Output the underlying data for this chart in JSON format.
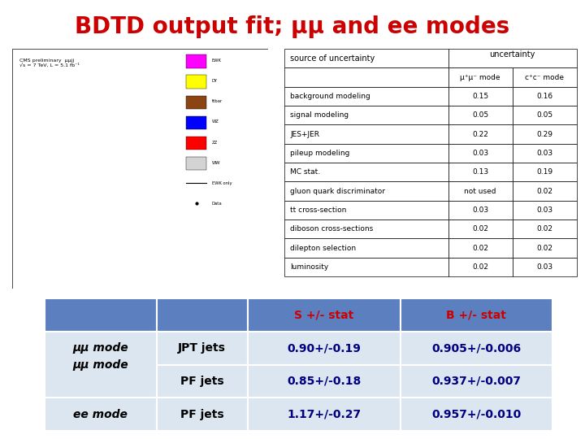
{
  "title": "BDTD output fit; μμ and ee modes",
  "title_color": "#cc0000",
  "title_fontsize": 20,
  "background_color": "#ffffff",
  "table_header_bg": "#5b7fbf",
  "table_row_bg": "#dce6f1",
  "table_border_color": "#ffffff",
  "col_headers": [
    "",
    "",
    "S +/- stat",
    "B +/- stat"
  ],
  "col_header_colors": [
    "#5b7fbf",
    "#5b7fbf",
    "#cc0000",
    "#cc0000"
  ],
  "rows": [
    {
      "mode_label": "μμ mode",
      "jet_type": "JPT jets",
      "s_stat": "0.90+/-0.19",
      "b_stat": "0.905+/-0.006"
    },
    {
      "mode_label": "",
      "jet_type": "PF jets",
      "s_stat": "0.85+/-0.18",
      "b_stat": "0.937+/-0.007"
    },
    {
      "mode_label": "ee mode",
      "jet_type": "PF jets",
      "s_stat": "1.17+/-0.27",
      "b_stat": "0.957+/-0.010"
    }
  ],
  "uncertainty_header": [
    "source of uncertainty",
    "uncertainty",
    ""
  ],
  "uncertainty_subheader": [
    "",
    "μ⁺μ⁻ mode",
    "c⁺c⁻ mode"
  ],
  "uncertainty_rows": [
    [
      "background modeling",
      "0.15",
      "0.16"
    ],
    [
      "signal modeling",
      "0.05",
      "0.05"
    ],
    [
      "JES+JER",
      "0.22",
      "0.29"
    ],
    [
      "pileup modeling",
      "0.03",
      "0.03"
    ],
    [
      "MC stat.",
      "0.13",
      "0.19"
    ],
    [
      "gluon quark discriminator",
      "not used",
      "0.02"
    ],
    [
      "tt cross-section",
      "0.03",
      "0.03"
    ],
    [
      "diboson cross-sections",
      "0.02",
      "0.02"
    ],
    [
      "dilepton selection",
      "0.02",
      "0.02"
    ],
    [
      "luminosity",
      "0.02",
      "0.03"
    ]
  ],
  "cms_plot_label": "CMS preliminary  μμjj\n√s = 7 TeV, L = 5.1 fb⁻¹",
  "legend_items": [
    "EWK",
    "DY",
    "ttbar",
    "WZ",
    "ZZ",
    "WW",
    "EWK only",
    "Data"
  ],
  "legend_colors": [
    "#ff00ff",
    "#ffff00",
    "#8b4513",
    "#0000ff",
    "#ff0000",
    "#d3d3d3",
    "#000000",
    "#000000"
  ]
}
